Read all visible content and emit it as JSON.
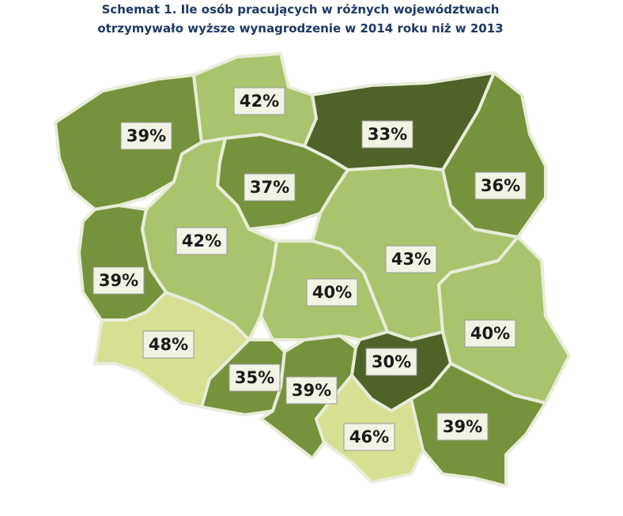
{
  "chart_data": {
    "type": "map",
    "title": [
      "Schemat 1. Ile osób pracujących w różnych województwach",
      "otrzymywało wyższe wynagrodzenie w 2014 roku niż w 2013"
    ],
    "values": [
      39,
      42,
      33,
      36,
      37,
      39,
      42,
      43,
      40,
      40,
      48,
      35,
      39,
      30,
      46,
      39
    ],
    "value_labels": [
      "39%",
      "42%",
      "33%",
      "36%",
      "37%",
      "39%",
      "42%",
      "43%",
      "40%",
      "40%",
      "48%",
      "35%",
      "39%",
      "30%",
      "46%",
      "39%"
    ],
    "colors": [
      "#76923c",
      "#a9c46c",
      "#4f6228",
      "#76923c",
      "#76923c",
      "#76923c",
      "#a9c46c",
      "#a9c46c",
      "#a9c46c",
      "#a9c46c",
      "#d6df92",
      "#76923c",
      "#76923c",
      "#4f6228",
      "#d6df92",
      "#76923c"
    ]
  }
}
